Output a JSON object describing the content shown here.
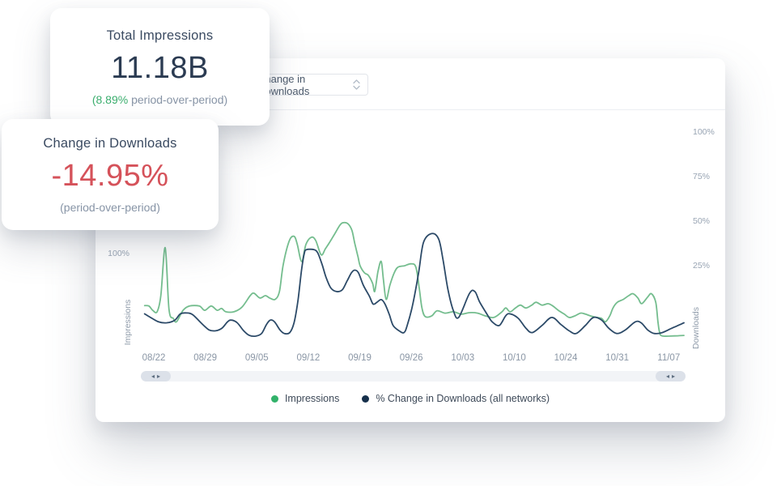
{
  "cards": {
    "impressions": {
      "title": "Total Impressions",
      "value": "11.18B",
      "delta_highlight": "(8.89%",
      "delta_rest": " period-over-period)",
      "delta_color": "#3bae6e"
    },
    "downloads": {
      "title": "Change in Downloads",
      "value": "-14.95%",
      "sub": "(period-over-period)",
      "value_color": "#d5525a"
    }
  },
  "controls": {
    "metric_select": {
      "value": "Change in Downloads"
    }
  },
  "icons": {
    "scroll_left_arrow": "◂",
    "scroll_right_arrow": "▸",
    "select_chevron": "up-down-chevron"
  },
  "chart_data": {
    "type": "line",
    "x_ticks": [
      "08/22",
      "08/29",
      "09/05",
      "09/12",
      "09/19",
      "09/26",
      "10/03",
      "10/10",
      "10/24",
      "10/31",
      "11/07"
    ],
    "axes": {
      "left": {
        "label": "Impressions",
        "min": -4.3,
        "max": 239,
        "tick_values": [
          100
        ],
        "tick_labels": [
          "100%"
        ]
      },
      "right": {
        "label": "Downloads",
        "min": -23.6,
        "max": 105.9,
        "tick_values": [
          100,
          75,
          50,
          25
        ],
        "tick_labels": [
          "100%",
          "75%",
          "50%",
          "25%"
        ]
      }
    },
    "legend": [
      {
        "label": "Impressions",
        "color": "#32b26a"
      },
      {
        "label": "% Change in Downloads (all networks)",
        "color": "#16304b"
      }
    ],
    "series": [
      {
        "name": "Impressions",
        "axis": "left",
        "color": "#74bd8e",
        "unit": "%",
        "points": [
          [
            0.004,
            45
          ],
          [
            0.012,
            44.5
          ],
          [
            0.019,
            40
          ],
          [
            0.027,
            38.5
          ],
          [
            0.034,
            55.5
          ],
          [
            0.042,
            106
          ],
          [
            0.049,
            41
          ],
          [
            0.057,
            31.5
          ],
          [
            0.063,
            28
          ],
          [
            0.075,
            40
          ],
          [
            0.087,
            44.5
          ],
          [
            0.105,
            44.5
          ],
          [
            0.115,
            40
          ],
          [
            0.127,
            44.5
          ],
          [
            0.138,
            40
          ],
          [
            0.146,
            42
          ],
          [
            0.154,
            38.5
          ],
          [
            0.169,
            38.5
          ],
          [
            0.184,
            43.5
          ],
          [
            0.199,
            55.5
          ],
          [
            0.206,
            58
          ],
          [
            0.217,
            53
          ],
          [
            0.227,
            55.5
          ],
          [
            0.235,
            53
          ],
          [
            0.245,
            51.5
          ],
          [
            0.253,
            60
          ],
          [
            0.26,
            88
          ],
          [
            0.271,
            113
          ],
          [
            0.28,
            118
          ],
          [
            0.286,
            109.5
          ],
          [
            0.294,
            91.5
          ],
          [
            0.302,
            109.5
          ],
          [
            0.312,
            117
          ],
          [
            0.32,
            113.5
          ],
          [
            0.33,
            98.5
          ],
          [
            0.338,
            105
          ],
          [
            0.345,
            111
          ],
          [
            0.354,
            119.5
          ],
          [
            0.365,
            130
          ],
          [
            0.372,
            132.5
          ],
          [
            0.38,
            131
          ],
          [
            0.387,
            124
          ],
          [
            0.392,
            111
          ],
          [
            0.398,
            96.5
          ],
          [
            0.402,
            87
          ],
          [
            0.41,
            79.5
          ],
          [
            0.417,
            77
          ],
          [
            0.425,
            68.5
          ],
          [
            0.429,
            60
          ],
          [
            0.435,
            81
          ],
          [
            0.441,
            91.5
          ],
          [
            0.445,
            72.5
          ],
          [
            0.45,
            51.5
          ],
          [
            0.457,
            66.5
          ],
          [
            0.465,
            79.5
          ],
          [
            0.472,
            85.5
          ],
          [
            0.484,
            87
          ],
          [
            0.496,
            89
          ],
          [
            0.505,
            85.5
          ],
          [
            0.511,
            64
          ],
          [
            0.516,
            43
          ],
          [
            0.522,
            33.5
          ],
          [
            0.534,
            34
          ],
          [
            0.544,
            39.5
          ],
          [
            0.559,
            37
          ],
          [
            0.574,
            38.5
          ],
          [
            0.589,
            36
          ],
          [
            0.604,
            37.5
          ],
          [
            0.619,
            37
          ],
          [
            0.634,
            34
          ],
          [
            0.649,
            32.5
          ],
          [
            0.664,
            38.5
          ],
          [
            0.671,
            42.5
          ],
          [
            0.679,
            38.5
          ],
          [
            0.689,
            42.5
          ],
          [
            0.698,
            45.5
          ],
          [
            0.708,
            42.5
          ],
          [
            0.719,
            45.5
          ],
          [
            0.727,
            48.5
          ],
          [
            0.738,
            45.5
          ],
          [
            0.749,
            47
          ],
          [
            0.758,
            44.5
          ],
          [
            0.768,
            40
          ],
          [
            0.779,
            36
          ],
          [
            0.788,
            32.5
          ],
          [
            0.798,
            34
          ],
          [
            0.809,
            37
          ],
          [
            0.818,
            36
          ],
          [
            0.828,
            34
          ],
          [
            0.839,
            32.5
          ],
          [
            0.848,
            31.5
          ],
          [
            0.855,
            28
          ],
          [
            0.863,
            34
          ],
          [
            0.869,
            42.5
          ],
          [
            0.877,
            48.5
          ],
          [
            0.888,
            51.5
          ],
          [
            0.898,
            55.5
          ],
          [
            0.906,
            57.5
          ],
          [
            0.915,
            53
          ],
          [
            0.922,
            47
          ],
          [
            0.933,
            54
          ],
          [
            0.94,
            57.5
          ],
          [
            0.948,
            48.5
          ],
          [
            0.952,
            28
          ],
          [
            0.955,
            17
          ],
          [
            0.96,
            13
          ],
          [
            0.982,
            13
          ],
          [
            1,
            13.5
          ]
        ]
      },
      {
        "name": "% Change in Downloads (all networks)",
        "axis": "right",
        "color": "#2c4a68",
        "unit": "%",
        "points": [
          [
            0.004,
            -2
          ],
          [
            0.015,
            -4
          ],
          [
            0.03,
            -6.5
          ],
          [
            0.045,
            -7
          ],
          [
            0.06,
            -5.5
          ],
          [
            0.07,
            -2
          ],
          [
            0.082,
            -1.5
          ],
          [
            0.093,
            -2.5
          ],
          [
            0.108,
            -7
          ],
          [
            0.123,
            -11
          ],
          [
            0.135,
            -11.5
          ],
          [
            0.147,
            -10
          ],
          [
            0.157,
            -6.5
          ],
          [
            0.164,
            -5.5
          ],
          [
            0.175,
            -7
          ],
          [
            0.187,
            -11.5
          ],
          [
            0.197,
            -14
          ],
          [
            0.209,
            -14.5
          ],
          [
            0.22,
            -13
          ],
          [
            0.229,
            -8
          ],
          [
            0.236,
            -5.5
          ],
          [
            0.244,
            -6.5
          ],
          [
            0.254,
            -11
          ],
          [
            0.262,
            -13
          ],
          [
            0.272,
            -12.5
          ],
          [
            0.28,
            -7
          ],
          [
            0.287,
            5
          ],
          [
            0.294,
            23
          ],
          [
            0.299,
            32
          ],
          [
            0.303,
            34
          ],
          [
            0.317,
            34
          ],
          [
            0.324,
            32
          ],
          [
            0.332,
            25.5
          ],
          [
            0.339,
            18.5
          ],
          [
            0.348,
            12.5
          ],
          [
            0.359,
            10.5
          ],
          [
            0.369,
            11.5
          ],
          [
            0.378,
            16.5
          ],
          [
            0.386,
            21
          ],
          [
            0.392,
            22.5
          ],
          [
            0.399,
            21
          ],
          [
            0.408,
            14
          ],
          [
            0.419,
            8
          ],
          [
            0.426,
            3.5
          ],
          [
            0.433,
            4.5
          ],
          [
            0.441,
            6
          ],
          [
            0.448,
            3.5
          ],
          [
            0.456,
            -2.5
          ],
          [
            0.463,
            -8.5
          ],
          [
            0.474,
            -11.5
          ],
          [
            0.483,
            -12.5
          ],
          [
            0.489,
            -8.5
          ],
          [
            0.499,
            3
          ],
          [
            0.51,
            21
          ],
          [
            0.519,
            38
          ],
          [
            0.534,
            43
          ],
          [
            0.547,
            40
          ],
          [
            0.555,
            28.5
          ],
          [
            0.564,
            12
          ],
          [
            0.574,
            0
          ],
          [
            0.584,
            -4
          ],
          [
            0.604,
            9.5
          ],
          [
            0.614,
            10.5
          ],
          [
            0.623,
            4.5
          ],
          [
            0.638,
            -3
          ],
          [
            0.646,
            -6.5
          ],
          [
            0.659,
            -8.5
          ],
          [
            0.671,
            -3
          ],
          [
            0.679,
            -2
          ],
          [
            0.694,
            -4.5
          ],
          [
            0.708,
            -10
          ],
          [
            0.72,
            -12.5
          ],
          [
            0.738,
            -8.5
          ],
          [
            0.756,
            -4
          ],
          [
            0.773,
            -8
          ],
          [
            0.788,
            -11.5
          ],
          [
            0.801,
            -13
          ],
          [
            0.818,
            -8.5
          ],
          [
            0.833,
            -4
          ],
          [
            0.848,
            -5.5
          ],
          [
            0.861,
            -10
          ],
          [
            0.876,
            -13
          ],
          [
            0.892,
            -11
          ],
          [
            0.91,
            -6.5
          ],
          [
            0.921,
            -7
          ],
          [
            0.933,
            -11
          ],
          [
            0.945,
            -13
          ],
          [
            0.96,
            -12.5
          ],
          [
            0.978,
            -10
          ],
          [
            0.993,
            -8
          ],
          [
            1,
            -7
          ]
        ]
      }
    ]
  }
}
